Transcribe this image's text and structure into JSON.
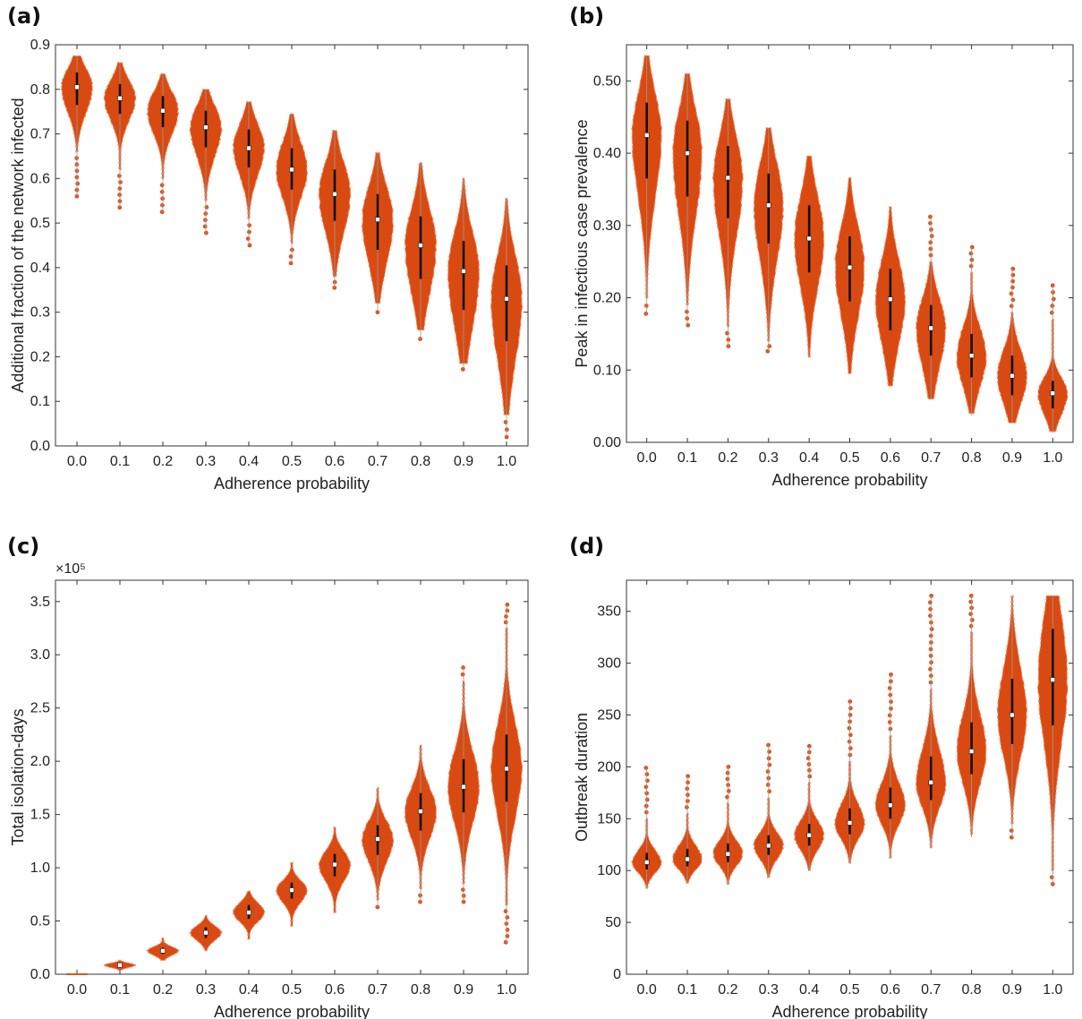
{
  "colors": {
    "violin_fill": "#d94a12",
    "violin_edge": "#f08a62",
    "outlier": "#e0541c",
    "box": "#111111",
    "median": "#ffffff"
  },
  "chart_data": [
    {
      "type": "violin",
      "panel_label": "(a)",
      "xlabel": "Adherence probability",
      "ylabel": "Additional fraction of the network infected",
      "categories": [
        "0.0",
        "0.1",
        "0.2",
        "0.3",
        "0.4",
        "0.5",
        "0.6",
        "0.7",
        "0.8",
        "0.9",
        "1.0"
      ],
      "ylim": [
        0,
        0.9
      ],
      "yticks": [
        "0.0",
        "0.1",
        "0.2",
        "0.3",
        "0.4",
        "0.5",
        "0.6",
        "0.7",
        "0.8",
        "0.9"
      ],
      "exponent_label": "",
      "series": [
        {
          "median": 0.805,
          "q1": 0.765,
          "q3": 0.838,
          "min": 0.66,
          "max": 0.875,
          "lo": 0.56,
          "hi": 0.875
        },
        {
          "median": 0.78,
          "q1": 0.745,
          "q3": 0.812,
          "min": 0.62,
          "max": 0.86,
          "lo": 0.535,
          "hi": 0.86
        },
        {
          "median": 0.752,
          "q1": 0.715,
          "q3": 0.785,
          "min": 0.6,
          "max": 0.835,
          "lo": 0.525,
          "hi": 0.835
        },
        {
          "median": 0.715,
          "q1": 0.67,
          "q3": 0.752,
          "min": 0.55,
          "max": 0.8,
          "lo": 0.478,
          "hi": 0.8
        },
        {
          "median": 0.668,
          "q1": 0.625,
          "q3": 0.71,
          "min": 0.51,
          "max": 0.772,
          "lo": 0.45,
          "hi": 0.772
        },
        {
          "median": 0.62,
          "q1": 0.575,
          "q3": 0.668,
          "min": 0.455,
          "max": 0.745,
          "lo": 0.41,
          "hi": 0.745
        },
        {
          "median": 0.565,
          "q1": 0.505,
          "q3": 0.62,
          "min": 0.38,
          "max": 0.708,
          "lo": 0.355,
          "hi": 0.708
        },
        {
          "median": 0.508,
          "q1": 0.44,
          "q3": 0.565,
          "min": 0.32,
          "max": 0.658,
          "lo": 0.3,
          "hi": 0.658
        },
        {
          "median": 0.45,
          "q1": 0.375,
          "q3": 0.515,
          "min": 0.26,
          "max": 0.635,
          "lo": 0.24,
          "hi": 0.635
        },
        {
          "median": 0.392,
          "q1": 0.305,
          "q3": 0.46,
          "min": 0.185,
          "max": 0.6,
          "lo": 0.172,
          "hi": 0.6
        },
        {
          "median": 0.33,
          "q1": 0.235,
          "q3": 0.405,
          "min": 0.07,
          "max": 0.555,
          "lo": 0.02,
          "hi": 0.555
        }
      ]
    },
    {
      "type": "violin",
      "panel_label": "(b)",
      "xlabel": "Adherence probability",
      "ylabel": "Peak in infectious case prevalence",
      "categories": [
        "0.0",
        "0.1",
        "0.2",
        "0.3",
        "0.4",
        "0.5",
        "0.6",
        "0.7",
        "0.8",
        "0.9",
        "1.0"
      ],
      "ylim": [
        0,
        0.55
      ],
      "yticks": [
        "0.00",
        "0.10",
        "0.20",
        "0.30",
        "0.40",
        "0.50"
      ],
      "exponent_label": "",
      "series": [
        {
          "median": 0.425,
          "q1": 0.365,
          "q3": 0.47,
          "min": 0.2,
          "max": 0.535,
          "lo": 0.178,
          "hi": 0.535
        },
        {
          "median": 0.4,
          "q1": 0.34,
          "q3": 0.445,
          "min": 0.19,
          "max": 0.51,
          "lo": 0.162,
          "hi": 0.51
        },
        {
          "median": 0.366,
          "q1": 0.31,
          "q3": 0.41,
          "min": 0.16,
          "max": 0.475,
          "lo": 0.133,
          "hi": 0.475
        },
        {
          "median": 0.328,
          "q1": 0.275,
          "q3": 0.372,
          "min": 0.14,
          "max": 0.435,
          "lo": 0.126,
          "hi": 0.435
        },
        {
          "median": 0.282,
          "q1": 0.235,
          "q3": 0.328,
          "min": 0.118,
          "max": 0.396,
          "lo": 0.116,
          "hi": 0.396
        },
        {
          "median": 0.242,
          "q1": 0.195,
          "q3": 0.285,
          "min": 0.095,
          "max": 0.366,
          "lo": 0.093,
          "hi": 0.366
        },
        {
          "median": 0.198,
          "q1": 0.155,
          "q3": 0.24,
          "min": 0.078,
          "max": 0.326,
          "lo": 0.078,
          "hi": 0.326
        },
        {
          "median": 0.158,
          "q1": 0.12,
          "q3": 0.19,
          "min": 0.06,
          "max": 0.25,
          "lo": 0.06,
          "hi": 0.312
        },
        {
          "median": 0.12,
          "q1": 0.09,
          "q3": 0.15,
          "min": 0.04,
          "max": 0.235,
          "lo": 0.037,
          "hi": 0.27
        },
        {
          "median": 0.092,
          "q1": 0.065,
          "q3": 0.12,
          "min": 0.027,
          "max": 0.18,
          "lo": 0.027,
          "hi": 0.24
        },
        {
          "median": 0.068,
          "q1": 0.047,
          "q3": 0.085,
          "min": 0.015,
          "max": 0.17,
          "lo": 0.013,
          "hi": 0.217
        }
      ]
    },
    {
      "type": "violin",
      "panel_label": "(c)",
      "xlabel": "Adherence probability",
      "ylabel": "Total isolation-days",
      "categories": [
        "0.0",
        "0.1",
        "0.2",
        "0.3",
        "0.4",
        "0.5",
        "0.6",
        "0.7",
        "0.8",
        "0.9",
        "1.0"
      ],
      "ylim": [
        0,
        3.7
      ],
      "yticks": [
        "0.0",
        "0.5",
        "1.0",
        "1.5",
        "2.0",
        "2.5",
        "3.0",
        "3.5"
      ],
      "exponent_label": "×10⁵",
      "series": [
        {
          "median": 0.0,
          "q1": 0.0,
          "q3": 0.0,
          "min": 0.0,
          "max": 0.0,
          "lo": 0.0,
          "hi": 0.0
        },
        {
          "median": 0.085,
          "q1": 0.07,
          "q3": 0.1,
          "min": 0.04,
          "max": 0.13,
          "lo": 0.04,
          "hi": 0.13
        },
        {
          "median": 0.22,
          "q1": 0.19,
          "q3": 0.25,
          "min": 0.13,
          "max": 0.34,
          "lo": 0.13,
          "hi": 0.34
        },
        {
          "median": 0.39,
          "q1": 0.34,
          "q3": 0.44,
          "min": 0.22,
          "max": 0.55,
          "lo": 0.22,
          "hi": 0.55
        },
        {
          "median": 0.58,
          "q1": 0.52,
          "q3": 0.65,
          "min": 0.33,
          "max": 0.78,
          "lo": 0.33,
          "hi": 0.78
        },
        {
          "median": 0.79,
          "q1": 0.71,
          "q3": 0.86,
          "min": 0.45,
          "max": 1.05,
          "lo": 0.45,
          "hi": 1.05
        },
        {
          "median": 1.03,
          "q1": 0.92,
          "q3": 1.13,
          "min": 0.58,
          "max": 1.38,
          "lo": 0.56,
          "hi": 1.38
        },
        {
          "median": 1.27,
          "q1": 1.12,
          "q3": 1.4,
          "min": 0.7,
          "max": 1.75,
          "lo": 0.63,
          "hi": 1.75
        },
        {
          "median": 1.53,
          "q1": 1.35,
          "q3": 1.7,
          "min": 0.8,
          "max": 2.15,
          "lo": 0.68,
          "hi": 2.15
        },
        {
          "median": 1.76,
          "q1": 1.52,
          "q3": 2.02,
          "min": 0.85,
          "max": 2.75,
          "lo": 0.68,
          "hi": 2.88
        },
        {
          "median": 1.93,
          "q1": 1.62,
          "q3": 2.25,
          "min": 0.65,
          "max": 3.25,
          "lo": 0.3,
          "hi": 3.47
        }
      ]
    },
    {
      "type": "violin",
      "panel_label": "(d)",
      "xlabel": "Adherence probability",
      "ylabel": "Outbreak duration",
      "categories": [
        "0.0",
        "0.1",
        "0.2",
        "0.3",
        "0.4",
        "0.5",
        "0.6",
        "0.7",
        "0.8",
        "0.9",
        "1.0"
      ],
      "ylim": [
        0,
        380
      ],
      "yticks": [
        "0",
        "50",
        "100",
        "150",
        "200",
        "250",
        "300",
        "350"
      ],
      "exponent_label": "",
      "series": [
        {
          "median": 108,
          "q1": 101,
          "q3": 117,
          "min": 83,
          "max": 150,
          "lo": 83,
          "hi": 199
        },
        {
          "median": 111,
          "q1": 104,
          "q3": 121,
          "min": 88,
          "max": 155,
          "lo": 88,
          "hi": 191
        },
        {
          "median": 116,
          "q1": 108,
          "q3": 126,
          "min": 87,
          "max": 165,
          "lo": 87,
          "hi": 200
        },
        {
          "median": 124,
          "q1": 115,
          "q3": 134,
          "min": 93,
          "max": 170,
          "lo": 93,
          "hi": 221
        },
        {
          "median": 134,
          "q1": 124,
          "q3": 145,
          "min": 100,
          "max": 185,
          "lo": 100,
          "hi": 220
        },
        {
          "median": 146,
          "q1": 135,
          "q3": 160,
          "min": 107,
          "max": 205,
          "lo": 107,
          "hi": 263
        },
        {
          "median": 163,
          "q1": 150,
          "q3": 180,
          "min": 112,
          "max": 230,
          "lo": 112,
          "hi": 289
        },
        {
          "median": 185,
          "q1": 168,
          "q3": 210,
          "min": 122,
          "max": 275,
          "lo": 122,
          "hi": 365
        },
        {
          "median": 215,
          "q1": 193,
          "q3": 243,
          "min": 135,
          "max": 330,
          "lo": 132,
          "hi": 365
        },
        {
          "median": 250,
          "q1": 222,
          "q3": 285,
          "min": 145,
          "max": 365,
          "lo": 132,
          "hi": 365
        },
        {
          "median": 284,
          "q1": 240,
          "q3": 333,
          "min": 100,
          "max": 365,
          "lo": 87,
          "hi": 365
        }
      ]
    }
  ]
}
